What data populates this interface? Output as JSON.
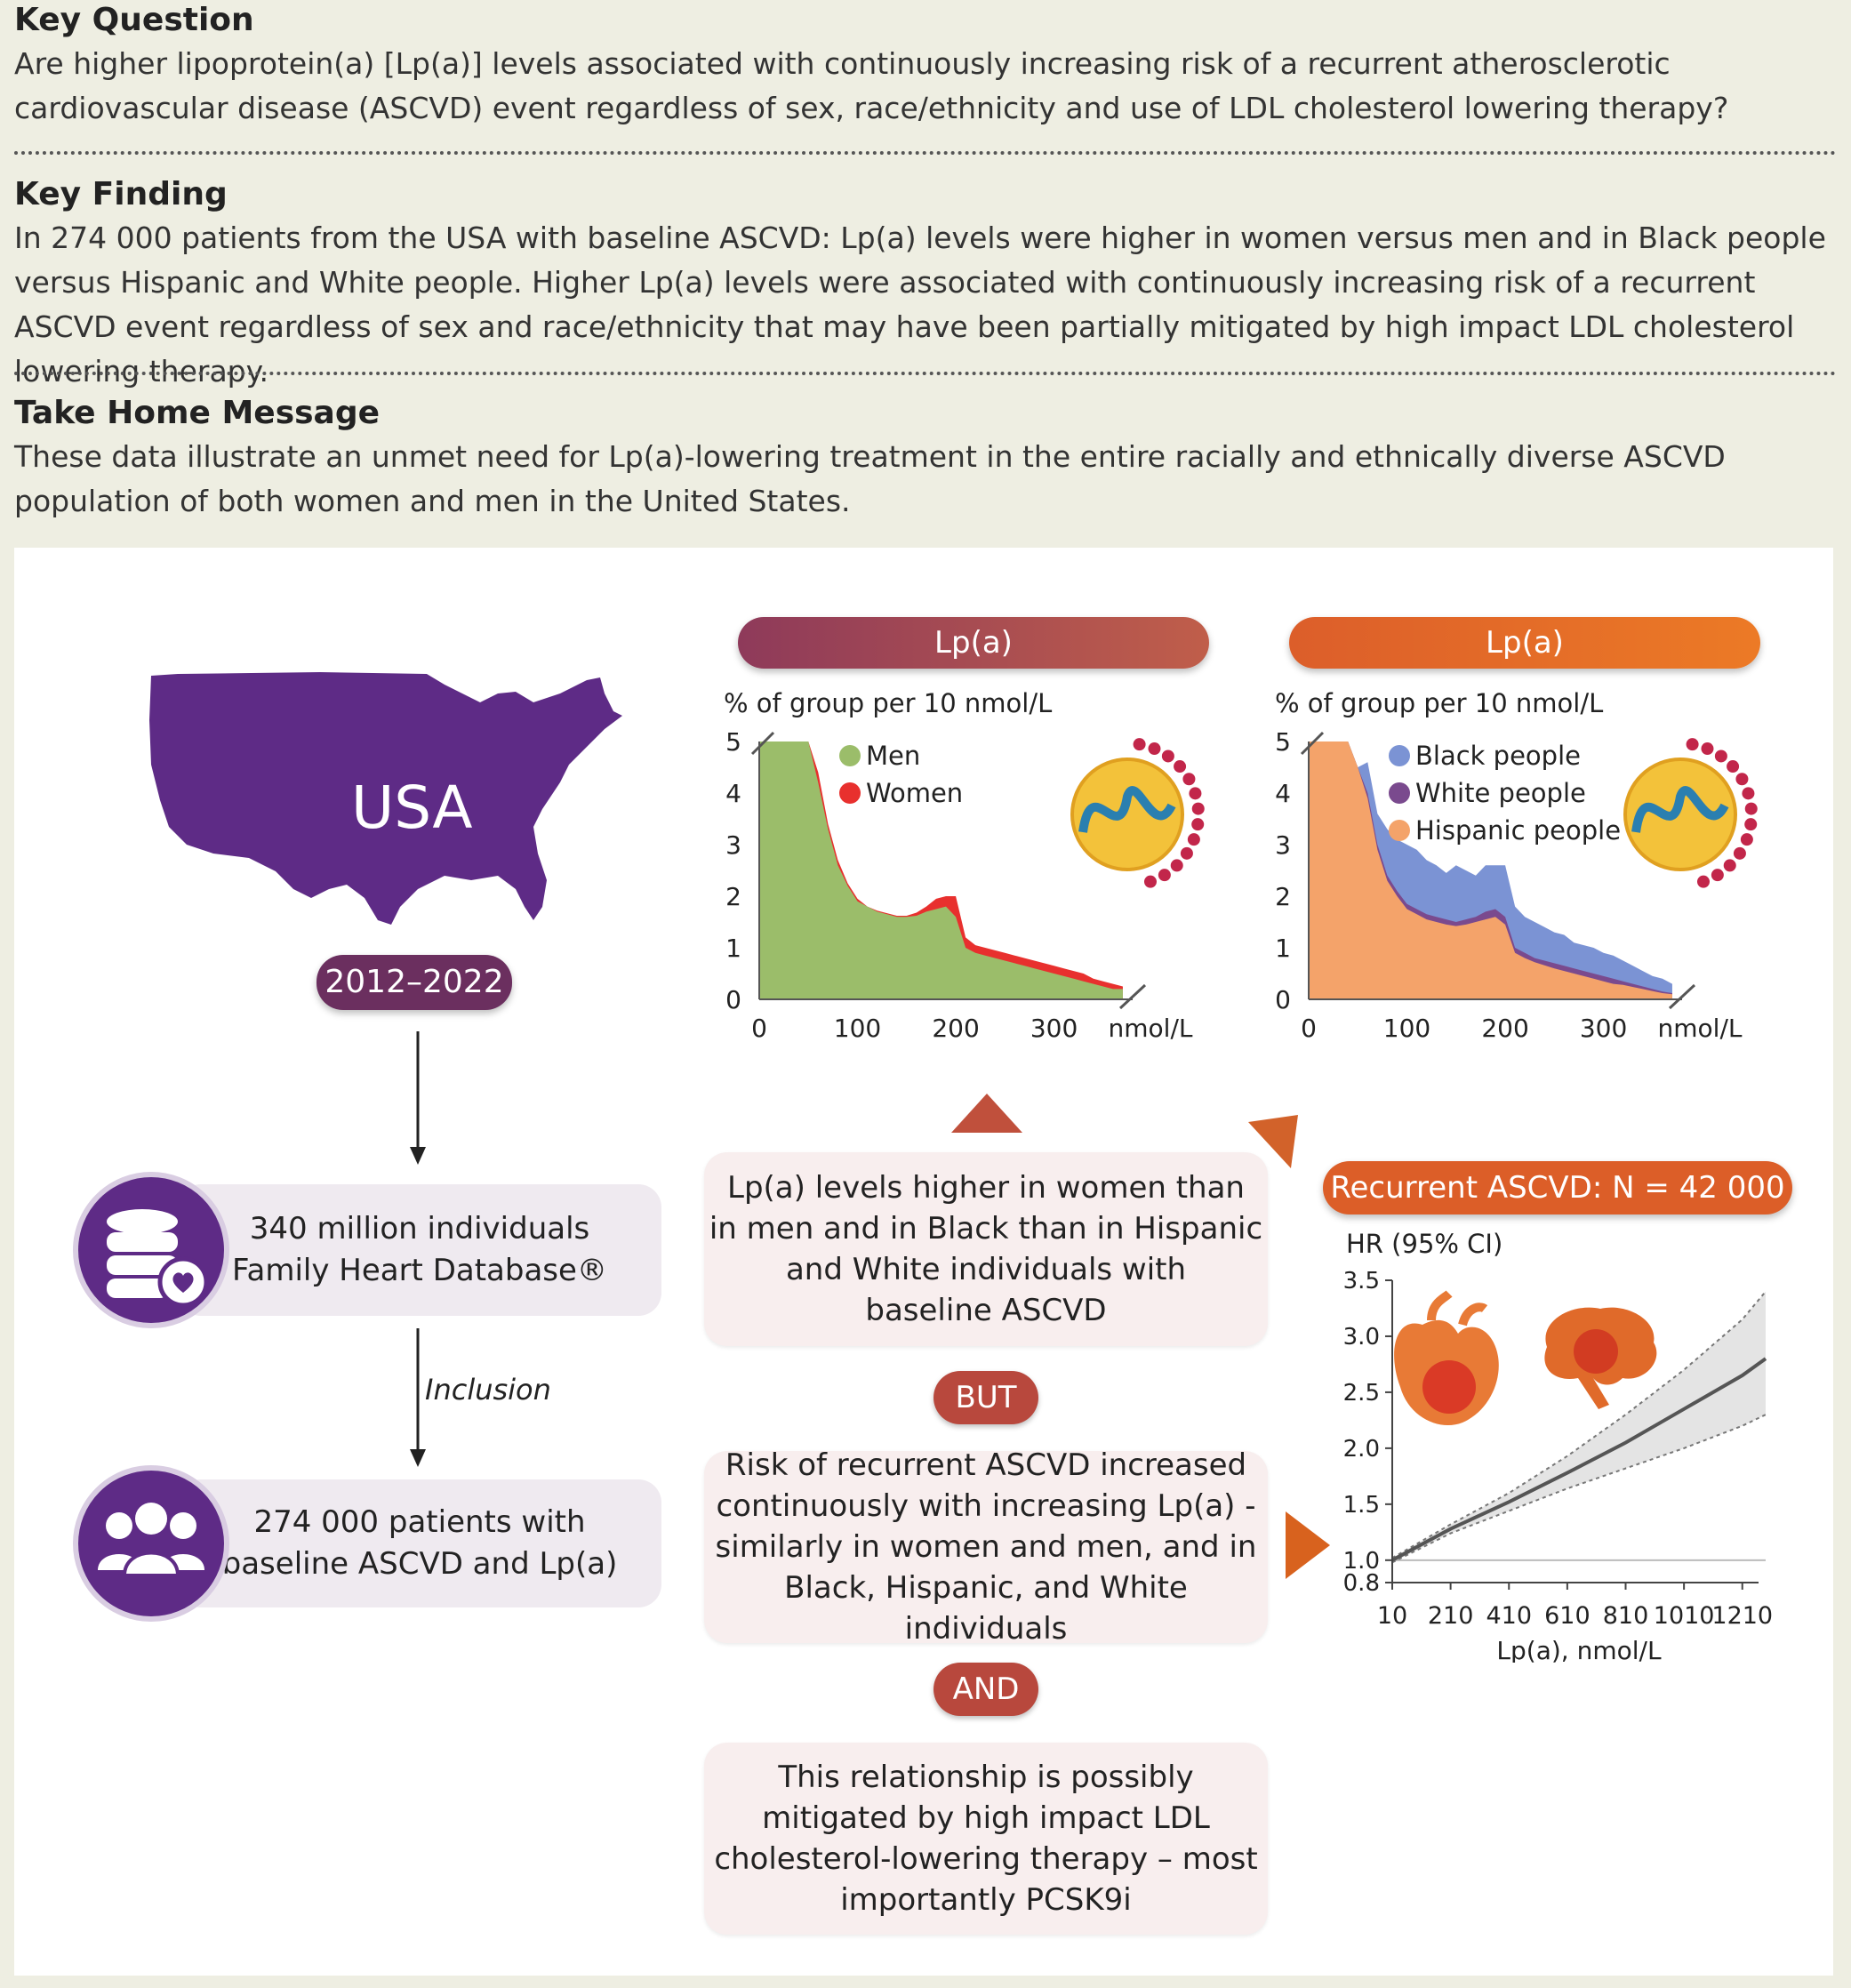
{
  "key_question": {
    "title": "Key Question",
    "text": "Are higher lipoprotein(a) [Lp(a)] levels associated with continuously increasing risk of a recurrent atherosclerotic cardiovascular disease (ASCVD) event regardless of sex, race/ethnicity and use of LDL cholesterol lowering therapy?"
  },
  "key_finding": {
    "title": "Key Finding",
    "text": "In 274 000 patients from the USA with baseline ASCVD: Lp(a) levels were higher in women versus men and in Black people versus Hispanic and White people. Higher Lp(a) levels were associated with continuously increasing risk of a recurrent ASCVD event regardless of sex and race/ethnicity that may have been partially mitigated by high impact LDL cholesterol lowering therapy."
  },
  "take_home": {
    "title": "Take Home Message",
    "text": "These data illustrate an unmet need for Lp(a)-lowering treatment in the entire racially and ethnically diverse ASCVD population of both women and men in the United States."
  },
  "flow": {
    "map_label": "USA",
    "years": "2012–2022",
    "database_text_1": "340 million individuals",
    "database_text_2": "Family Heart Database®",
    "inclusion_label": "Inclusion",
    "patients_text_1": "274 000 patients with",
    "patients_text_2": "baseline ASCVD and Lp(a)"
  },
  "middle": {
    "box1_lines": [
      "Lp(a) levels higher in women than",
      "in men and in Black than in Hispanic",
      "and White individuals with",
      "baseline ASCVD"
    ],
    "but": "BUT",
    "box2_lines": [
      "Risk of recurrent ASCVD increased",
      "continuously with increasing Lp(a) -",
      "similarly in women and men, and in",
      "Black, Hispanic, and White individuals"
    ],
    "and": "AND",
    "box3_lines": [
      "This relationship is possibly",
      "mitigated by high impact LDL",
      "cholesterol-lowering therapy – most",
      "importantly PCSK9i"
    ]
  },
  "colors": {
    "purple": "#5e2b86",
    "men": "#9bbd6a",
    "women": "#e8302e",
    "black_people": "#7b93d4",
    "white_people": "#7a4a8e",
    "hispanic_people": "#f4a36a",
    "accent_red": "#b8483d",
    "accent_orange": "#e06a2a"
  },
  "chart_data": [
    {
      "type": "area",
      "header": "Lp(a)",
      "ylabel": "% of group per 10 nmol/L",
      "xunit": "nmol/L",
      "xticks": [
        0,
        100,
        200,
        300
      ],
      "yticks": [
        0,
        1,
        2,
        3,
        4,
        5
      ],
      "ylim": [
        0,
        5
      ],
      "xlim": [
        0,
        380
      ],
      "legend_placement": "top-center",
      "x": [
        0,
        10,
        20,
        30,
        40,
        50,
        60,
        70,
        80,
        90,
        100,
        110,
        120,
        130,
        140,
        150,
        160,
        170,
        180,
        190,
        200,
        210,
        220,
        230,
        240,
        250,
        260,
        270,
        280,
        290,
        300,
        310,
        320,
        330,
        340,
        350,
        360,
        370
      ],
      "series": [
        {
          "name": "Men",
          "values": [
            5,
            5,
            5,
            5,
            5,
            5,
            4.2,
            3.3,
            2.6,
            2.2,
            1.9,
            1.8,
            1.7,
            1.65,
            1.6,
            1.6,
            1.62,
            1.7,
            1.75,
            1.8,
            1.6,
            1.0,
            0.9,
            0.85,
            0.8,
            0.75,
            0.7,
            0.65,
            0.6,
            0.55,
            0.5,
            0.45,
            0.4,
            0.35,
            0.3,
            0.25,
            0.2,
            0.2
          ]
        },
        {
          "name": "Women",
          "values": [
            5,
            5,
            5,
            5,
            5,
            5,
            4.4,
            3.4,
            2.7,
            2.25,
            1.95,
            1.8,
            1.72,
            1.67,
            1.62,
            1.62,
            1.68,
            1.8,
            1.95,
            2.0,
            2.0,
            1.2,
            1.05,
            1.0,
            0.95,
            0.9,
            0.85,
            0.8,
            0.75,
            0.7,
            0.65,
            0.6,
            0.55,
            0.5,
            0.4,
            0.35,
            0.3,
            0.25
          ]
        }
      ]
    },
    {
      "type": "area",
      "header": "Lp(a)",
      "ylabel": "% of group per 10 nmol/L",
      "xunit": "nmol/L",
      "xticks": [
        0,
        100,
        200,
        300
      ],
      "yticks": [
        0,
        1,
        2,
        3,
        4,
        5
      ],
      "ylim": [
        0,
        5
      ],
      "xlim": [
        0,
        380
      ],
      "legend_placement": "top-center",
      "x": [
        0,
        10,
        20,
        30,
        40,
        50,
        60,
        70,
        80,
        90,
        100,
        110,
        120,
        130,
        140,
        150,
        160,
        170,
        180,
        190,
        200,
        210,
        220,
        230,
        240,
        250,
        260,
        270,
        280,
        290,
        300,
        310,
        320,
        330,
        340,
        350,
        360,
        370
      ],
      "series": [
        {
          "name": "Black people",
          "values": [
            5,
            5,
            5,
            5,
            5,
            4.5,
            4.6,
            3.6,
            3.3,
            3.1,
            3.0,
            2.9,
            2.7,
            2.6,
            2.45,
            2.6,
            2.5,
            2.4,
            2.6,
            2.6,
            2.6,
            1.8,
            1.6,
            1.5,
            1.4,
            1.3,
            1.25,
            1.1,
            1.05,
            1.0,
            0.9,
            0.85,
            0.75,
            0.65,
            0.55,
            0.45,
            0.4,
            0.3
          ]
        },
        {
          "name": "White people",
          "values": [
            5,
            5,
            5,
            5,
            5,
            4.5,
            4.0,
            3.0,
            2.4,
            2.1,
            1.85,
            1.75,
            1.65,
            1.6,
            1.55,
            1.5,
            1.55,
            1.6,
            1.7,
            1.75,
            1.6,
            1.0,
            0.9,
            0.8,
            0.75,
            0.7,
            0.65,
            0.6,
            0.55,
            0.5,
            0.45,
            0.4,
            0.35,
            0.3,
            0.25,
            0.2,
            0.15,
            0.12
          ]
        },
        {
          "name": "Hispanic people",
          "values": [
            5,
            5,
            5,
            5,
            5,
            4.5,
            3.9,
            2.9,
            2.3,
            2.0,
            1.75,
            1.65,
            1.55,
            1.5,
            1.45,
            1.42,
            1.45,
            1.5,
            1.55,
            1.6,
            1.45,
            0.9,
            0.8,
            0.72,
            0.66,
            0.6,
            0.55,
            0.5,
            0.45,
            0.4,
            0.35,
            0.3,
            0.28,
            0.24,
            0.2,
            0.16,
            0.12,
            0.1
          ]
        }
      ]
    },
    {
      "type": "line",
      "header": "Recurrent ASCVD: N = 42 000",
      "ylabel": "HR (95% CI)",
      "xlabel": "Lp(a), nmol/L",
      "xticks": [
        10,
        210,
        410,
        610,
        810,
        1010,
        1210
      ],
      "yticks": [
        0.8,
        1.0,
        1.5,
        2.0,
        2.5,
        3.0,
        3.5
      ],
      "ylim": [
        0.8,
        3.5
      ],
      "xlim": [
        10,
        1290
      ],
      "reference_line": 1.0,
      "x": [
        10,
        210,
        410,
        610,
        810,
        1010,
        1210,
        1290
      ],
      "series": [
        {
          "name": "HR",
          "values": [
            1.0,
            1.28,
            1.52,
            1.78,
            2.05,
            2.35,
            2.65,
            2.8
          ]
        },
        {
          "name": "upper",
          "values": [
            1.02,
            1.32,
            1.6,
            1.93,
            2.3,
            2.7,
            3.15,
            3.4
          ]
        },
        {
          "name": "lower",
          "values": [
            0.98,
            1.24,
            1.44,
            1.64,
            1.82,
            2.0,
            2.2,
            2.3
          ]
        }
      ]
    }
  ]
}
